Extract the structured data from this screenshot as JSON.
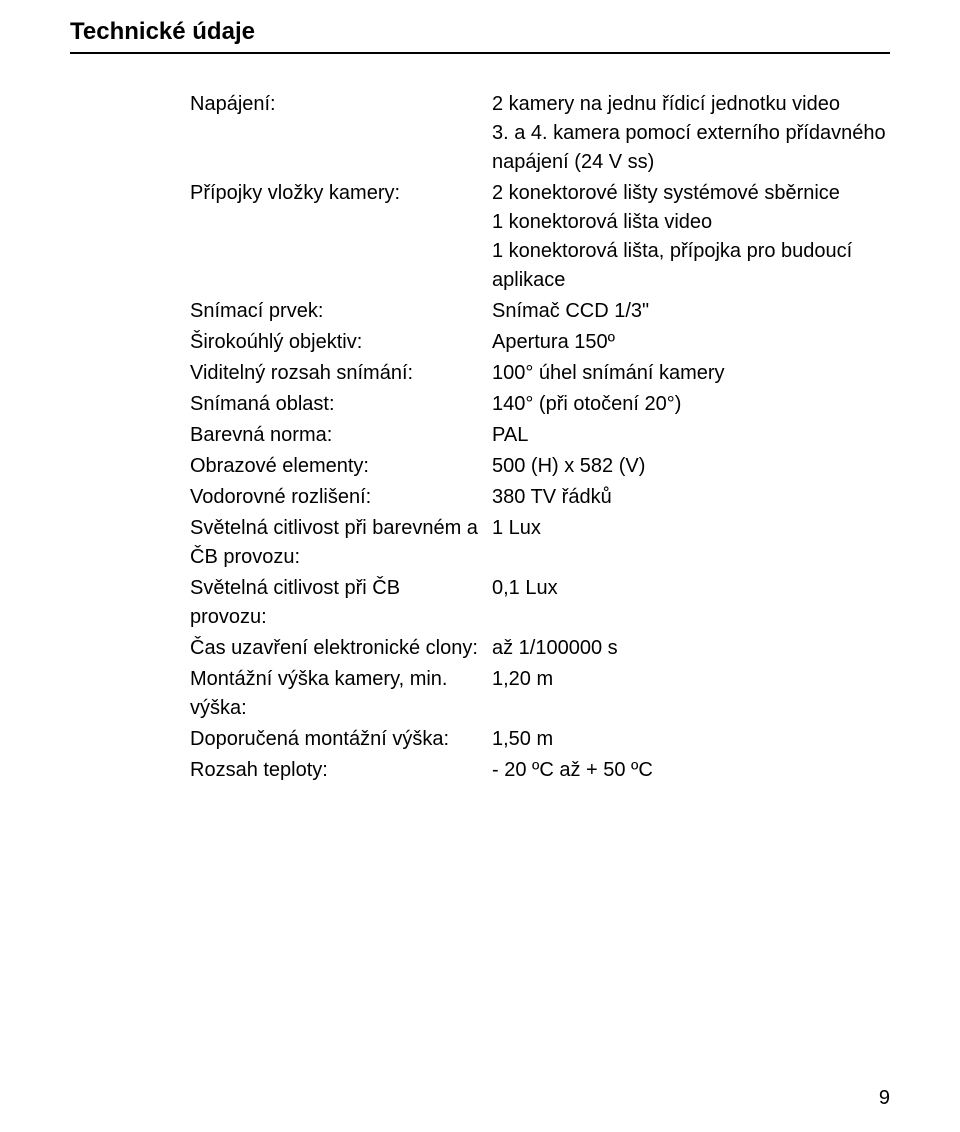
{
  "title": "Technické údaje",
  "page_number": "9",
  "colors": {
    "text": "#000000",
    "background": "#ffffff",
    "rule": "#000000"
  },
  "fonts": {
    "title_size_pt": 18,
    "body_size_pt": 15
  },
  "specs": [
    {
      "label": "Napájení:",
      "value_lines": [
        "2 kamery na jednu řídicí jednotku video",
        "3. a 4. kamera pomocí externího přídavného napájení (24 V ss)"
      ]
    },
    {
      "label": "Přípojky vložky kamery:",
      "value_lines": [
        "2 konektorové lišty systémové sběrnice",
        "1 konektorová lišta video",
        "1 konektorová lišta, přípojka pro budoucí aplikace"
      ]
    },
    {
      "label": "Snímací prvek:",
      "value_lines": [
        "Snímač CCD 1/3\""
      ]
    },
    {
      "label": "Širokoúhlý objektiv:",
      "value_lines": [
        "Apertura 150º"
      ]
    },
    {
      "label": "Viditelný rozsah snímání:",
      "value_lines": [
        "100° úhel snímání kamery"
      ]
    },
    {
      "label": "Snímaná oblast:",
      "value_lines": [
        "140° (při otočení 20°)"
      ]
    },
    {
      "label": "Barevná norma:",
      "value_lines": [
        "PAL"
      ]
    },
    {
      "label": "Obrazové elementy:",
      "value_lines": [
        "500 (H) x 582 (V)"
      ]
    },
    {
      "label": "Vodorovné rozlišení:",
      "value_lines": [
        "380 TV řádků"
      ]
    },
    {
      "label": "Světelná citlivost při barevném a ČB provozu:",
      "value_lines": [
        "1 Lux"
      ]
    },
    {
      "label": "Světelná citlivost při ČB provozu:",
      "value_lines": [
        "0,1 Lux"
      ]
    },
    {
      "label": "Čas uzavření elektronické clony:",
      "value_lines": [
        "až 1/100000 s"
      ]
    },
    {
      "label": "Montážní výška kamery, min. výška:",
      "value_lines": [
        "1,20 m"
      ]
    },
    {
      "label": "Doporučená montážní výška:",
      "value_lines": [
        "1,50 m"
      ]
    },
    {
      "label": "Rozsah teploty:",
      "value_lines": [
        "- 20 ºC až + 50 ºC"
      ]
    }
  ]
}
